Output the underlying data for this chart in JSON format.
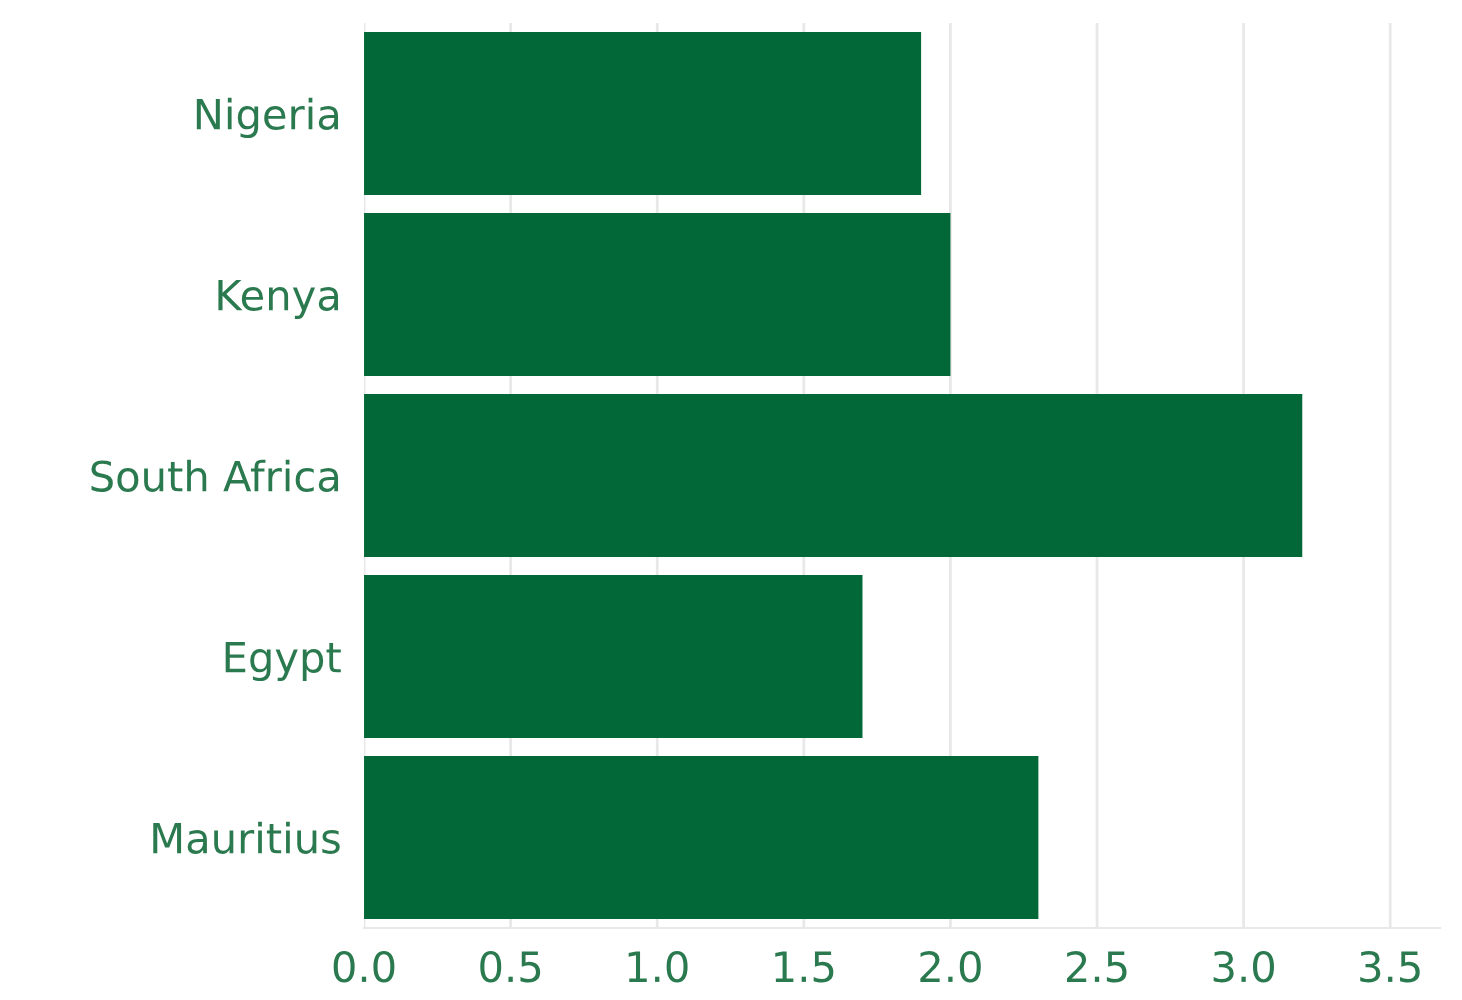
{
  "chart_data": {
    "type": "bar",
    "orientation": "horizontal",
    "categories": [
      "Nigeria",
      "Kenya",
      "South Africa",
      "Egypt",
      "Mauritius"
    ],
    "values": [
      1.9,
      2.0,
      3.2,
      1.7,
      2.3
    ],
    "color": "#036837",
    "xlim": [
      0,
      3.67
    ],
    "xticks": [
      {
        "value": 0,
        "label": "0.0"
      },
      0.5,
      {
        "value": 1,
        "label": "1.0"
      },
      1.5,
      {
        "value": 2,
        "label": "2.0"
      },
      2.5,
      {
        "value": 3,
        "label": "3.0"
      },
      3.5
    ],
    "grid": "x"
  }
}
